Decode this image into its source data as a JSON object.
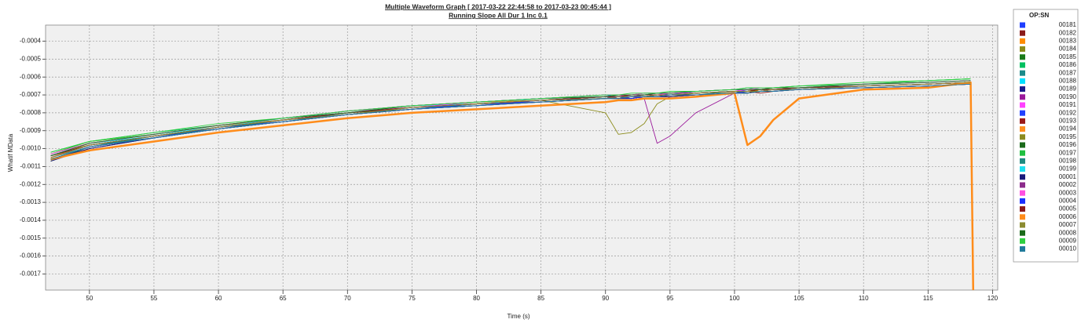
{
  "chart_data": {
    "type": "line",
    "title": "Multiple Waveform Graph [ 2017-03-22 22:44:58 to 2017-03-23 00:45:44 ]",
    "subtitle": "Running Slope All Dur 1 Inc 0.1",
    "x_label": "Time (s)",
    "y_label": "Whatif MData",
    "legend_title": "OP:SN",
    "grid": true,
    "legend": "right",
    "xlim": [
      46.6,
      120.4
    ],
    "xticks": [
      50,
      55,
      60,
      65,
      70,
      75,
      80,
      85,
      90,
      95,
      100,
      105,
      110,
      115,
      120
    ],
    "ylim": [
      -0.00179,
      -0.00031
    ],
    "yticks": [
      -0.0004,
      -0.0005,
      -0.0006,
      -0.0007,
      -0.0008,
      -0.0009,
      {
        "value": -0.001,
        "label": "-0.0010"
      },
      -0.0011,
      -0.0012,
      -0.0013,
      -0.0014,
      -0.0015,
      -0.0016,
      -0.0017
    ],
    "x": [
      47,
      50,
      55,
      60,
      65,
      70,
      75,
      80,
      85,
      90,
      91,
      92,
      93,
      94,
      95,
      97,
      100,
      101,
      102,
      103,
      105,
      110,
      115,
      118.3,
      118.5
    ],
    "series": [
      {
        "name": "00181",
        "color": "#1f3fff",
        "values": [
          -0.00104,
          -0.00097,
          -0.00092,
          -0.00087,
          -0.00083,
          -0.00079,
          -0.00076,
          -0.00074,
          -0.00072,
          -0.0007,
          -0.00071,
          -0.0007,
          -0.0007,
          -0.00069,
          -0.0007,
          -0.00068,
          -0.00067,
          -0.00068,
          -0.00067,
          -0.00066,
          -0.00066,
          -0.00064,
          -0.00063,
          -0.00062,
          null
        ]
      },
      {
        "name": "00182",
        "color": "#8b1a1a",
        "values": [
          -0.00106,
          -0.00099,
          -0.00094,
          -0.00088,
          -0.00085,
          -0.00081,
          -0.00077,
          -0.00075,
          -0.00074,
          -0.00072,
          -0.00071,
          -0.00072,
          -0.00071,
          -0.0007,
          -0.00071,
          -0.0007,
          -0.00069,
          -0.00068,
          -0.00069,
          -0.00068,
          -0.00067,
          -0.00066,
          -0.00065,
          -0.00064,
          null
        ]
      },
      {
        "name": "00183",
        "color": "#ff8c00",
        "values": [
          -0.00103,
          -0.00096,
          -0.00092,
          -0.00087,
          -0.00084,
          -0.0008,
          -0.00077,
          -0.00074,
          -0.00073,
          -0.00071,
          -0.0007,
          -0.00071,
          -0.0007,
          -0.0007,
          -0.00069,
          -0.00069,
          -0.00068,
          -0.00067,
          -0.00068,
          -0.00067,
          -0.00066,
          -0.00065,
          -0.00064,
          -0.00063,
          null
        ]
      },
      {
        "name": "00184",
        "color": "#8b8b1a",
        "values": [
          -0.00105,
          -0.00098,
          -0.00093,
          -0.00089,
          -0.00084,
          -0.0008,
          -0.00078,
          -0.00075,
          -0.00073,
          -0.0008,
          -0.00092,
          -0.00091,
          -0.00086,
          -0.00075,
          -0.00071,
          -0.00069,
          -0.00068,
          -0.00068,
          -0.00067,
          -0.00067,
          -0.00066,
          -0.00065,
          -0.00064,
          -0.00063,
          null
        ]
      },
      {
        "name": "00185",
        "color": "#1a7a1a",
        "values": [
          -0.00107,
          -0.00099,
          -0.00093,
          -0.00088,
          -0.00084,
          -0.00081,
          -0.00078,
          -0.00075,
          -0.00073,
          -0.00071,
          -0.00072,
          -0.00071,
          -0.00071,
          -0.0007,
          -0.0007,
          -0.00069,
          -0.00068,
          -0.00069,
          -0.00068,
          -0.00067,
          -0.00067,
          -0.00065,
          -0.00064,
          -0.00063,
          null
        ]
      },
      {
        "name": "00186",
        "color": "#00c060",
        "values": [
          -0.00102,
          -0.00096,
          -0.00091,
          -0.00087,
          -0.00083,
          -0.00079,
          -0.00076,
          -0.00074,
          -0.00072,
          -0.0007,
          -0.0007,
          -0.0007,
          -0.00069,
          -0.00069,
          -0.00069,
          -0.00068,
          -0.00067,
          -0.00066,
          -0.00067,
          -0.00066,
          -0.00065,
          -0.00064,
          -0.00062,
          -0.00061,
          null
        ]
      },
      {
        "name": "00187",
        "color": "#1a8a8a",
        "values": [
          -0.00105,
          -0.00098,
          -0.00094,
          -0.00089,
          -0.00085,
          -0.0008,
          -0.00077,
          -0.00076,
          -0.00073,
          -0.00072,
          -0.00071,
          -0.00071,
          -0.00071,
          -0.0007,
          -0.0007,
          -0.0007,
          -0.00068,
          -0.00068,
          -0.00068,
          -0.00067,
          -0.00067,
          -0.00065,
          -0.00064,
          -0.00063,
          null
        ]
      },
      {
        "name": "00188",
        "color": "#00e0ff",
        "values": [
          -0.00104,
          -0.00097,
          -0.00093,
          -0.00088,
          -0.00083,
          -0.0008,
          -0.00076,
          -0.00075,
          -0.00072,
          -0.00071,
          -0.0007,
          -0.0007,
          -0.0007,
          -0.00069,
          -0.00069,
          -0.00068,
          -0.00067,
          -0.00067,
          -0.00066,
          -0.00066,
          -0.00066,
          -0.00064,
          -0.00063,
          -0.00062,
          null
        ]
      },
      {
        "name": "00189",
        "color": "#1a1a8b",
        "values": [
          -0.00106,
          -0.001,
          -0.00094,
          -0.00089,
          -0.00085,
          -0.00081,
          -0.00078,
          -0.00076,
          -0.00074,
          -0.00072,
          -0.00072,
          -0.00072,
          -0.00071,
          -0.00071,
          -0.00071,
          -0.0007,
          -0.00069,
          -0.00069,
          -0.00068,
          -0.00068,
          -0.00067,
          -0.00066,
          -0.00065,
          -0.00064,
          null
        ]
      },
      {
        "name": "00190",
        "color": "#9b1a9b",
        "values": [
          -0.00105,
          -0.00098,
          -0.00093,
          -0.00088,
          -0.00084,
          -0.0008,
          -0.00077,
          -0.00075,
          -0.00073,
          -0.00071,
          -0.00072,
          -0.00071,
          -0.00072,
          -0.00097,
          -0.00093,
          -0.0008,
          -0.00069,
          -0.00068,
          -0.00068,
          -0.00067,
          -0.00067,
          -0.00065,
          -0.00064,
          -0.00063,
          null
        ]
      },
      {
        "name": "00191",
        "color": "#ff40ff",
        "values": [
          -0.00103,
          -0.00097,
          -0.00092,
          -0.00087,
          -0.00083,
          -0.00079,
          -0.00077,
          -0.00074,
          -0.00072,
          -0.00071,
          -0.0007,
          -0.00071,
          -0.0007,
          -0.0007,
          -0.00069,
          -0.00069,
          -0.00068,
          -0.00067,
          -0.00067,
          -0.00066,
          -0.00066,
          -0.00064,
          -0.00063,
          -0.00062,
          null
        ]
      },
      {
        "name": "00192",
        "color": "#2040ff",
        "values": [
          -0.00106,
          -0.00099,
          -0.00094,
          -0.00088,
          -0.00085,
          -0.00081,
          -0.00078,
          -0.00075,
          -0.00074,
          -0.00072,
          -0.00071,
          -0.00071,
          -0.00071,
          -0.0007,
          -0.0007,
          -0.00069,
          -0.00068,
          -0.00068,
          -0.00068,
          -0.00067,
          -0.00066,
          -0.00065,
          -0.00064,
          -0.00063,
          null
        ]
      },
      {
        "name": "00193",
        "color": "#9b1a1a",
        "values": [
          -0.00104,
          -0.00098,
          -0.00093,
          -0.00088,
          -0.00084,
          -0.0008,
          -0.00077,
          -0.00075,
          -0.00073,
          -0.00071,
          -0.00071,
          -0.0007,
          -0.0007,
          -0.0007,
          -0.0007,
          -0.00069,
          -0.00068,
          -0.00068,
          -0.00067,
          -0.00067,
          -0.00067,
          -0.00065,
          -0.00064,
          -0.00063,
          null
        ]
      },
      {
        "name": "00194",
        "color": "#ff9020",
        "values": [
          -0.00105,
          -0.00097,
          -0.00092,
          -0.00087,
          -0.00084,
          -0.0008,
          -0.00076,
          -0.00074,
          -0.00073,
          -0.00071,
          -0.0007,
          -0.0007,
          -0.0007,
          -0.00069,
          -0.00069,
          -0.00068,
          -0.00067,
          -0.00067,
          -0.00067,
          -0.00066,
          -0.00066,
          -0.00064,
          -0.00063,
          -0.00062,
          null
        ]
      },
      {
        "name": "00195",
        "color": "#8b8b20",
        "values": [
          -0.00106,
          -0.00099,
          -0.00094,
          -0.00089,
          -0.00085,
          -0.00081,
          -0.00078,
          -0.00076,
          -0.00073,
          -0.00072,
          -0.00072,
          -0.00071,
          -0.00071,
          -0.00071,
          -0.0007,
          -0.0007,
          -0.00069,
          -0.00068,
          -0.00068,
          -0.00068,
          -0.00067,
          -0.00066,
          -0.00065,
          -0.00064,
          null
        ]
      },
      {
        "name": "00196",
        "color": "#1a6a1a",
        "values": [
          -0.00104,
          -0.00098,
          -0.00093,
          -0.00088,
          -0.00084,
          -0.0008,
          -0.00077,
          -0.00075,
          -0.00073,
          -0.00071,
          -0.00071,
          -0.00071,
          -0.0007,
          -0.0007,
          -0.0007,
          -0.00069,
          -0.00068,
          -0.00068,
          -0.00067,
          -0.00067,
          -0.00066,
          -0.00065,
          -0.00064,
          -0.00063,
          null
        ]
      },
      {
        "name": "00197",
        "color": "#20c040",
        "values": [
          -0.00103,
          -0.00096,
          -0.00092,
          -0.00087,
          -0.00083,
          -0.00079,
          -0.00076,
          -0.00074,
          -0.00072,
          -0.0007,
          -0.0007,
          -0.0007,
          -0.00069,
          -0.00069,
          -0.00069,
          -0.00068,
          -0.00067,
          -0.00067,
          -0.00066,
          -0.00066,
          -0.00065,
          -0.00064,
          -0.00062,
          -0.00061,
          null
        ]
      },
      {
        "name": "00198",
        "color": "#208a80",
        "values": [
          -0.00105,
          -0.00099,
          -0.00093,
          -0.00089,
          -0.00084,
          -0.00081,
          -0.00077,
          -0.00075,
          -0.00073,
          -0.00072,
          -0.00071,
          -0.00071,
          -0.00071,
          -0.0007,
          -0.0007,
          -0.00069,
          -0.00068,
          -0.00068,
          -0.00068,
          -0.00067,
          -0.00067,
          -0.00065,
          -0.00064,
          -0.00063,
          null
        ]
      },
      {
        "name": "00199",
        "color": "#20e0f0",
        "values": [
          -0.00104,
          -0.00097,
          -0.00092,
          -0.00088,
          -0.00083,
          -0.0008,
          -0.00076,
          -0.00074,
          -0.00072,
          -0.00071,
          -0.0007,
          -0.0007,
          -0.0007,
          -0.00069,
          -0.00069,
          -0.00068,
          -0.00067,
          -0.00067,
          -0.00067,
          -0.00066,
          -0.00066,
          -0.00064,
          -0.00063,
          -0.00062,
          null
        ]
      },
      {
        "name": "00001",
        "color": "#1a1a7b",
        "values": [
          -0.00107,
          -0.001,
          -0.00094,
          -0.00089,
          -0.00085,
          -0.00081,
          -0.00078,
          -0.00076,
          -0.00074,
          -0.00072,
          -0.00072,
          -0.00072,
          -0.00071,
          -0.00071,
          -0.00071,
          -0.0007,
          -0.00069,
          -0.00069,
          -0.00068,
          -0.00068,
          -0.00067,
          -0.00066,
          -0.00065,
          -0.00064,
          null
        ]
      },
      {
        "name": "00002",
        "color": "#8b2a8b",
        "values": [
          -0.00105,
          -0.00098,
          -0.00093,
          -0.00088,
          -0.00084,
          -0.0008,
          -0.00077,
          -0.00075,
          -0.00073,
          -0.00071,
          -0.00071,
          -0.00071,
          -0.0007,
          -0.0007,
          -0.0007,
          -0.00069,
          -0.00068,
          -0.00068,
          -0.00068,
          -0.00067,
          -0.00067,
          -0.00065,
          -0.00064,
          -0.00063,
          null
        ]
      },
      {
        "name": "00003",
        "color": "#ff50e0",
        "values": [
          -0.00103,
          -0.00097,
          -0.00092,
          -0.00087,
          -0.00083,
          -0.00079,
          -0.00076,
          -0.00074,
          -0.00072,
          -0.0007,
          -0.0007,
          -0.0007,
          -0.00069,
          -0.00069,
          -0.00069,
          -0.00068,
          -0.00067,
          -0.00067,
          -0.00066,
          -0.00066,
          -0.00066,
          -0.00064,
          -0.00063,
          -0.00062,
          null
        ]
      },
      {
        "name": "00004",
        "color": "#1a30ff",
        "values": [
          -0.00106,
          -0.00099,
          -0.00094,
          -0.00089,
          -0.00085,
          -0.00081,
          -0.00078,
          -0.00076,
          -0.00073,
          -0.00072,
          -0.00071,
          -0.00072,
          -0.00071,
          -0.00071,
          -0.0007,
          -0.0007,
          -0.00069,
          -0.00068,
          -0.00068,
          -0.00068,
          -0.00067,
          -0.00066,
          -0.00065,
          -0.00064,
          null
        ]
      },
      {
        "name": "00005",
        "color": "#8b1a1a",
        "values": [
          -0.00104,
          -0.00098,
          -0.00093,
          -0.00088,
          -0.00084,
          -0.0008,
          -0.00077,
          -0.00075,
          -0.00073,
          -0.00071,
          -0.00071,
          -0.0007,
          -0.0007,
          -0.0007,
          -0.0007,
          -0.00069,
          -0.00068,
          -0.00068,
          -0.00067,
          -0.00067,
          -0.00066,
          -0.00065,
          -0.00064,
          -0.00063,
          null
        ]
      },
      {
        "name": "00006",
        "color": "#ff8c1a",
        "width": 2.5,
        "values": [
          -0.00106,
          -0.00101,
          -0.00096,
          -0.00091,
          -0.00087,
          -0.00083,
          -0.0008,
          -0.00078,
          -0.00076,
          -0.00074,
          -0.00073,
          -0.00073,
          -0.00072,
          -0.00072,
          -0.00072,
          -0.00071,
          -0.00069,
          -0.00098,
          -0.00093,
          -0.00084,
          -0.00072,
          -0.00067,
          -0.00066,
          -0.00063,
          -0.0018
        ]
      },
      {
        "name": "00007",
        "color": "#8b8b30",
        "values": [
          -0.00105,
          -0.00098,
          -0.00093,
          -0.00088,
          -0.00084,
          -0.00081,
          -0.00077,
          -0.00075,
          -0.00073,
          -0.00072,
          -0.00071,
          -0.00071,
          -0.00071,
          -0.0007,
          -0.0007,
          -0.00069,
          -0.00068,
          -0.00068,
          -0.00068,
          -0.00067,
          -0.00067,
          -0.00065,
          -0.00064,
          -0.00063,
          null
        ]
      },
      {
        "name": "00008",
        "color": "#1a6a1a",
        "values": [
          -0.00104,
          -0.00097,
          -0.00092,
          -0.00087,
          -0.00083,
          -0.0008,
          -0.00076,
          -0.00074,
          -0.00072,
          -0.00071,
          -0.0007,
          -0.0007,
          -0.0007,
          -0.00069,
          -0.00069,
          -0.00068,
          -0.00067,
          -0.00067,
          -0.00067,
          -0.00066,
          -0.00066,
          -0.00064,
          -0.00063,
          -0.00062,
          null
        ]
      },
      {
        "name": "00009",
        "color": "#30d040",
        "values": [
          -0.00102,
          -0.00096,
          -0.00091,
          -0.00086,
          -0.00083,
          -0.00079,
          -0.00076,
          -0.00074,
          -0.00072,
          -0.0007,
          -0.0007,
          -0.00069,
          -0.00069,
          -0.00069,
          -0.00068,
          -0.00068,
          -0.00067,
          -0.00066,
          -0.00066,
          -0.00066,
          -0.00065,
          -0.00063,
          -0.00062,
          -0.00061,
          null
        ]
      },
      {
        "name": "00010",
        "color": "#207a9b",
        "values": [
          -0.00106,
          -0.00099,
          -0.00094,
          -0.00089,
          -0.00085,
          -0.00081,
          -0.00078,
          -0.00076,
          -0.00074,
          -0.00072,
          -0.00072,
          -0.00071,
          -0.00071,
          -0.00071,
          -0.0007,
          -0.0007,
          -0.00069,
          -0.00069,
          -0.00068,
          -0.00068,
          -0.00067,
          -0.00066,
          -0.00065,
          -0.00064,
          null
        ]
      }
    ]
  }
}
